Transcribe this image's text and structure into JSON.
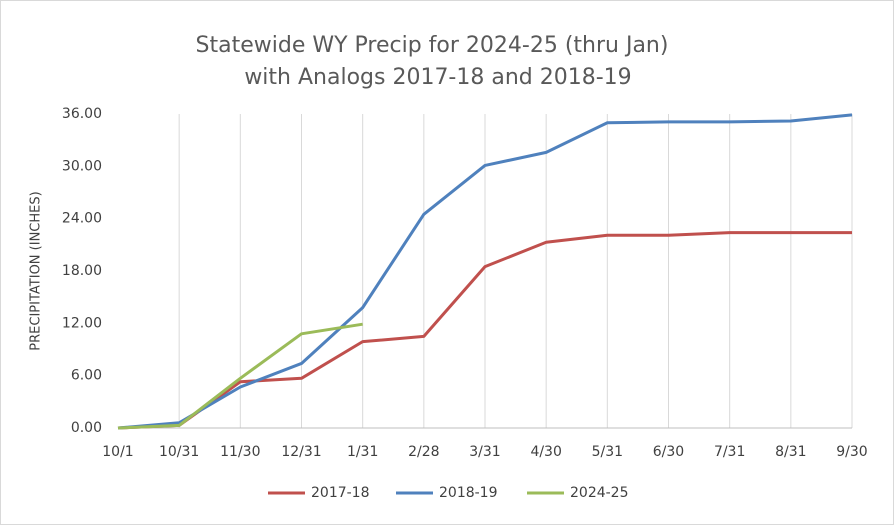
{
  "chart_data": {
    "type": "line",
    "title": "Statewide WY Precip for 2024-25 (thru Jan)",
    "subtitle": "with Analogs 2017-18 and 2018-19",
    "y_label": "PRECIPITATION (INCHES)",
    "categories": [
      "10/1",
      "10/31",
      "11/30",
      "12/31",
      "1/31",
      "2/28",
      "3/31",
      "4/30",
      "5/31",
      "6/30",
      "7/31",
      "8/31",
      "9/30"
    ],
    "series": [
      {
        "name": "2017-18",
        "color": "#c0504d",
        "values": [
          0,
          0.3,
          5.3,
          5.7,
          9.9,
          10.5,
          18.5,
          21.3,
          22.1,
          22.1,
          22.4,
          22.4,
          22.4
        ]
      },
      {
        "name": "2018-19",
        "color": "#4f81bd",
        "values": [
          0,
          0.6,
          4.7,
          7.4,
          13.8,
          24.5,
          30.1,
          31.6,
          35.0,
          35.1,
          35.1,
          35.2,
          35.9
        ]
      },
      {
        "name": "2024-25",
        "color": "#9bbb59",
        "values": [
          0,
          0.3,
          5.7,
          10.8,
          11.9,
          null,
          null,
          null,
          null,
          null,
          null,
          null,
          null
        ]
      }
    ],
    "ylim": [
      0,
      36
    ],
    "yticks": [
      {
        "value": 0,
        "label": "0.00"
      },
      {
        "value": 6,
        "label": "6.00"
      },
      {
        "value": 12,
        "label": "12.00"
      },
      {
        "value": 18,
        "label": "18.00"
      },
      {
        "value": 24,
        "label": "24.00"
      },
      {
        "value": 30,
        "label": "30.00"
      },
      {
        "value": 36,
        "label": "36.00"
      }
    ],
    "grid": "vertical",
    "legend": "bottom"
  }
}
